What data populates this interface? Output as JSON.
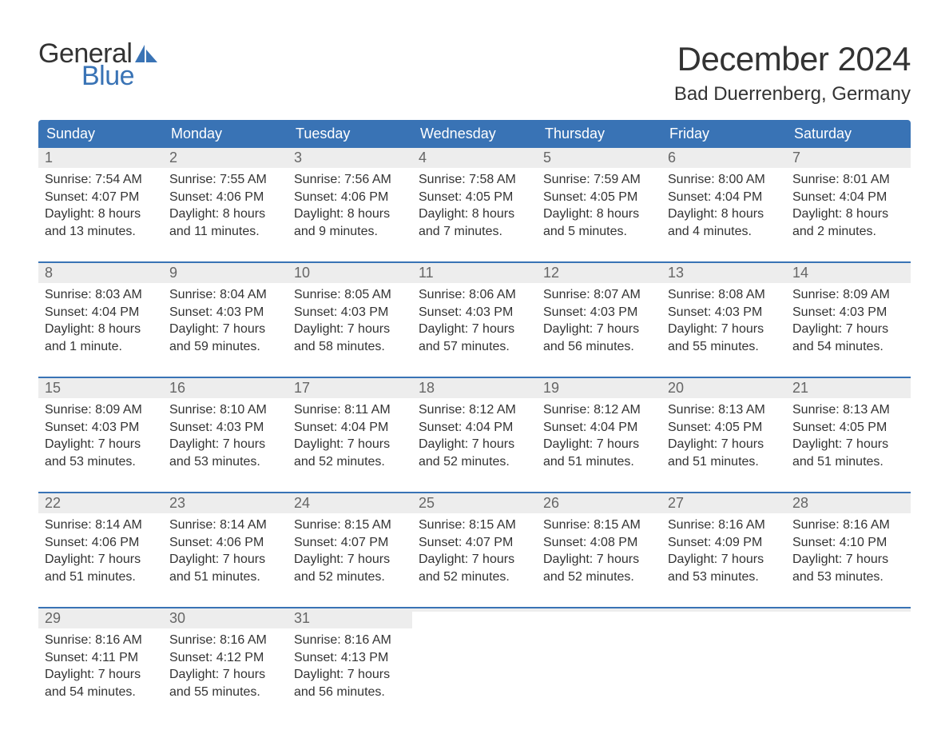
{
  "logo": {
    "general": "General",
    "blue": "Blue"
  },
  "title": "December 2024",
  "location": "Bad Duerrenberg, Germany",
  "colors": {
    "header_bg": "#3973b5",
    "header_text": "#ffffff",
    "daynum_bg": "#ededed",
    "daynum_text": "#666666",
    "body_text": "#333333",
    "page_bg": "#ffffff",
    "week_border": "#3973b5",
    "logo_blue": "#3973b5"
  },
  "day_names": [
    "Sunday",
    "Monday",
    "Tuesday",
    "Wednesday",
    "Thursday",
    "Friday",
    "Saturday"
  ],
  "weeks": [
    [
      {
        "day": "1",
        "sunrise": "Sunrise: 7:54 AM",
        "sunset": "Sunset: 4:07 PM",
        "daylight1": "Daylight: 8 hours",
        "daylight2": "and 13 minutes."
      },
      {
        "day": "2",
        "sunrise": "Sunrise: 7:55 AM",
        "sunset": "Sunset: 4:06 PM",
        "daylight1": "Daylight: 8 hours",
        "daylight2": "and 11 minutes."
      },
      {
        "day": "3",
        "sunrise": "Sunrise: 7:56 AM",
        "sunset": "Sunset: 4:06 PM",
        "daylight1": "Daylight: 8 hours",
        "daylight2": "and 9 minutes."
      },
      {
        "day": "4",
        "sunrise": "Sunrise: 7:58 AM",
        "sunset": "Sunset: 4:05 PM",
        "daylight1": "Daylight: 8 hours",
        "daylight2": "and 7 minutes."
      },
      {
        "day": "5",
        "sunrise": "Sunrise: 7:59 AM",
        "sunset": "Sunset: 4:05 PM",
        "daylight1": "Daylight: 8 hours",
        "daylight2": "and 5 minutes."
      },
      {
        "day": "6",
        "sunrise": "Sunrise: 8:00 AM",
        "sunset": "Sunset: 4:04 PM",
        "daylight1": "Daylight: 8 hours",
        "daylight2": "and 4 minutes."
      },
      {
        "day": "7",
        "sunrise": "Sunrise: 8:01 AM",
        "sunset": "Sunset: 4:04 PM",
        "daylight1": "Daylight: 8 hours",
        "daylight2": "and 2 minutes."
      }
    ],
    [
      {
        "day": "8",
        "sunrise": "Sunrise: 8:03 AM",
        "sunset": "Sunset: 4:04 PM",
        "daylight1": "Daylight: 8 hours",
        "daylight2": "and 1 minute."
      },
      {
        "day": "9",
        "sunrise": "Sunrise: 8:04 AM",
        "sunset": "Sunset: 4:03 PM",
        "daylight1": "Daylight: 7 hours",
        "daylight2": "and 59 minutes."
      },
      {
        "day": "10",
        "sunrise": "Sunrise: 8:05 AM",
        "sunset": "Sunset: 4:03 PM",
        "daylight1": "Daylight: 7 hours",
        "daylight2": "and 58 minutes."
      },
      {
        "day": "11",
        "sunrise": "Sunrise: 8:06 AM",
        "sunset": "Sunset: 4:03 PM",
        "daylight1": "Daylight: 7 hours",
        "daylight2": "and 57 minutes."
      },
      {
        "day": "12",
        "sunrise": "Sunrise: 8:07 AM",
        "sunset": "Sunset: 4:03 PM",
        "daylight1": "Daylight: 7 hours",
        "daylight2": "and 56 minutes."
      },
      {
        "day": "13",
        "sunrise": "Sunrise: 8:08 AM",
        "sunset": "Sunset: 4:03 PM",
        "daylight1": "Daylight: 7 hours",
        "daylight2": "and 55 minutes."
      },
      {
        "day": "14",
        "sunrise": "Sunrise: 8:09 AM",
        "sunset": "Sunset: 4:03 PM",
        "daylight1": "Daylight: 7 hours",
        "daylight2": "and 54 minutes."
      }
    ],
    [
      {
        "day": "15",
        "sunrise": "Sunrise: 8:09 AM",
        "sunset": "Sunset: 4:03 PM",
        "daylight1": "Daylight: 7 hours",
        "daylight2": "and 53 minutes."
      },
      {
        "day": "16",
        "sunrise": "Sunrise: 8:10 AM",
        "sunset": "Sunset: 4:03 PM",
        "daylight1": "Daylight: 7 hours",
        "daylight2": "and 53 minutes."
      },
      {
        "day": "17",
        "sunrise": "Sunrise: 8:11 AM",
        "sunset": "Sunset: 4:04 PM",
        "daylight1": "Daylight: 7 hours",
        "daylight2": "and 52 minutes."
      },
      {
        "day": "18",
        "sunrise": "Sunrise: 8:12 AM",
        "sunset": "Sunset: 4:04 PM",
        "daylight1": "Daylight: 7 hours",
        "daylight2": "and 52 minutes."
      },
      {
        "day": "19",
        "sunrise": "Sunrise: 8:12 AM",
        "sunset": "Sunset: 4:04 PM",
        "daylight1": "Daylight: 7 hours",
        "daylight2": "and 51 minutes."
      },
      {
        "day": "20",
        "sunrise": "Sunrise: 8:13 AM",
        "sunset": "Sunset: 4:05 PM",
        "daylight1": "Daylight: 7 hours",
        "daylight2": "and 51 minutes."
      },
      {
        "day": "21",
        "sunrise": "Sunrise: 8:13 AM",
        "sunset": "Sunset: 4:05 PM",
        "daylight1": "Daylight: 7 hours",
        "daylight2": "and 51 minutes."
      }
    ],
    [
      {
        "day": "22",
        "sunrise": "Sunrise: 8:14 AM",
        "sunset": "Sunset: 4:06 PM",
        "daylight1": "Daylight: 7 hours",
        "daylight2": "and 51 minutes."
      },
      {
        "day": "23",
        "sunrise": "Sunrise: 8:14 AM",
        "sunset": "Sunset: 4:06 PM",
        "daylight1": "Daylight: 7 hours",
        "daylight2": "and 51 minutes."
      },
      {
        "day": "24",
        "sunrise": "Sunrise: 8:15 AM",
        "sunset": "Sunset: 4:07 PM",
        "daylight1": "Daylight: 7 hours",
        "daylight2": "and 52 minutes."
      },
      {
        "day": "25",
        "sunrise": "Sunrise: 8:15 AM",
        "sunset": "Sunset: 4:07 PM",
        "daylight1": "Daylight: 7 hours",
        "daylight2": "and 52 minutes."
      },
      {
        "day": "26",
        "sunrise": "Sunrise: 8:15 AM",
        "sunset": "Sunset: 4:08 PM",
        "daylight1": "Daylight: 7 hours",
        "daylight2": "and 52 minutes."
      },
      {
        "day": "27",
        "sunrise": "Sunrise: 8:16 AM",
        "sunset": "Sunset: 4:09 PM",
        "daylight1": "Daylight: 7 hours",
        "daylight2": "and 53 minutes."
      },
      {
        "day": "28",
        "sunrise": "Sunrise: 8:16 AM",
        "sunset": "Sunset: 4:10 PM",
        "daylight1": "Daylight: 7 hours",
        "daylight2": "and 53 minutes."
      }
    ],
    [
      {
        "day": "29",
        "sunrise": "Sunrise: 8:16 AM",
        "sunset": "Sunset: 4:11 PM",
        "daylight1": "Daylight: 7 hours",
        "daylight2": "and 54 minutes."
      },
      {
        "day": "30",
        "sunrise": "Sunrise: 8:16 AM",
        "sunset": "Sunset: 4:12 PM",
        "daylight1": "Daylight: 7 hours",
        "daylight2": "and 55 minutes."
      },
      {
        "day": "31",
        "sunrise": "Sunrise: 8:16 AM",
        "sunset": "Sunset: 4:13 PM",
        "daylight1": "Daylight: 7 hours",
        "daylight2": "and 56 minutes."
      },
      {
        "empty": true
      },
      {
        "empty": true
      },
      {
        "empty": true
      },
      {
        "empty": true
      }
    ]
  ]
}
